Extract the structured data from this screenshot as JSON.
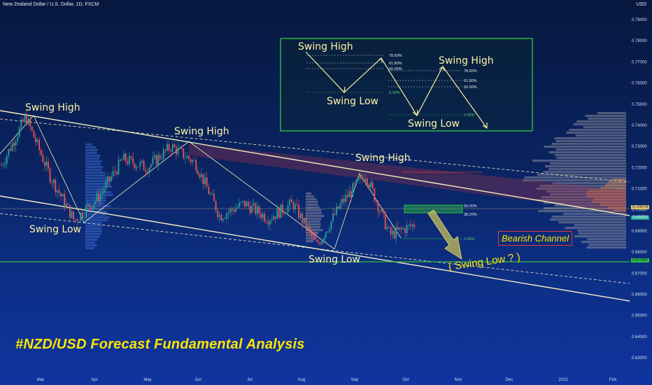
{
  "header": {
    "symbol_line": "New Zealand Dollar / U.S. Dollar, 1D, FXCM",
    "currency": "USD"
  },
  "title_text": "#NZD/USD Forecast Fundamental Analysis",
  "bearish_channel_label": "Bearish Channel",
  "swing_low_question": "( Swing Low ? )",
  "price_tags": {
    "current": "0.70079",
    "lower": "0.69350",
    "support": "0.67550"
  },
  "colors": {
    "bg_top": "#07183f",
    "bg_bottom": "#1034a0",
    "up": "#26a69a",
    "down": "#ef5350",
    "annotation": "#fff3a8",
    "accent_yellow": "#ffe600",
    "green": "#2fbf3f"
  },
  "annotations": {
    "swing_high_1": "Swing High",
    "swing_high_2": "Swing High",
    "swing_high_3": "Swing High",
    "swing_low_1": "Swing Low",
    "swing_low_2": "Swing Low",
    "inset_swing_high_1": "Swing High",
    "inset_swing_high_2": "Swing High",
    "inset_swing_low_1": "Swing Low",
    "inset_swing_low_2": "Swing Low"
  },
  "fib_main": {
    "l1": "50.00%",
    "l2": "38.20%",
    "l3": "0.00%"
  },
  "fib_inset": {
    "a1": "78.60%",
    "a2": "61.80%",
    "a3": "50.00%",
    "a4": "0.00%",
    "b1": "78.60%",
    "b2": "61.80%",
    "b3": "50.00%",
    "b4": "0.00%"
  },
  "chart_data": {
    "type": "candlestick",
    "title": "New Zealand Dollar / U.S. Dollar, 1D, FXCM",
    "ylim": [
      0.623,
      0.796
    ],
    "y_ticks": [
      "0.79000",
      "0.78000",
      "0.77000",
      "0.76000",
      "0.75000",
      "0.74000",
      "0.73000",
      "0.72000",
      "0.71000",
      "0.70000",
      "0.69000",
      "0.68000",
      "0.67000",
      "0.66000",
      "0.65000",
      "0.64000",
      "0.63000"
    ],
    "x_ticks": [
      "Mar",
      "Apr",
      "May",
      "Jun",
      "Jul",
      "Aug",
      "Sep",
      "Oct",
      "Nov",
      "Dec",
      "2022",
      "Feb"
    ],
    "price_path_approx": [
      {
        "t": "Feb",
        "v": 0.721
      },
      {
        "t": "late Feb",
        "v": 0.744
      },
      {
        "t": "Mar",
        "v": 0.716
      },
      {
        "t": "late Mar",
        "v": 0.695
      },
      {
        "t": "Apr",
        "v": 0.706
      },
      {
        "t": "late Apr",
        "v": 0.724
      },
      {
        "t": "May",
        "v": 0.72
      },
      {
        "t": "late May",
        "v": 0.73
      },
      {
        "t": "Jun",
        "v": 0.722
      },
      {
        "t": "late Jun",
        "v": 0.697
      },
      {
        "t": "Jul",
        "v": 0.703
      },
      {
        "t": "late Jul",
        "v": 0.696
      },
      {
        "t": "Aug",
        "v": 0.703
      },
      {
        "t": "mid Aug",
        "v": 0.683
      },
      {
        "t": "late Aug",
        "v": 0.703
      },
      {
        "t": "Sep",
        "v": 0.717
      },
      {
        "t": "late Sep",
        "v": 0.688
      },
      {
        "t": "Oct",
        "v": 0.693
      }
    ],
    "levels": {
      "resistance_zone": [
        0.698,
        0.7
      ],
      "support": 0.6755,
      "current": 0.70079
    }
  }
}
